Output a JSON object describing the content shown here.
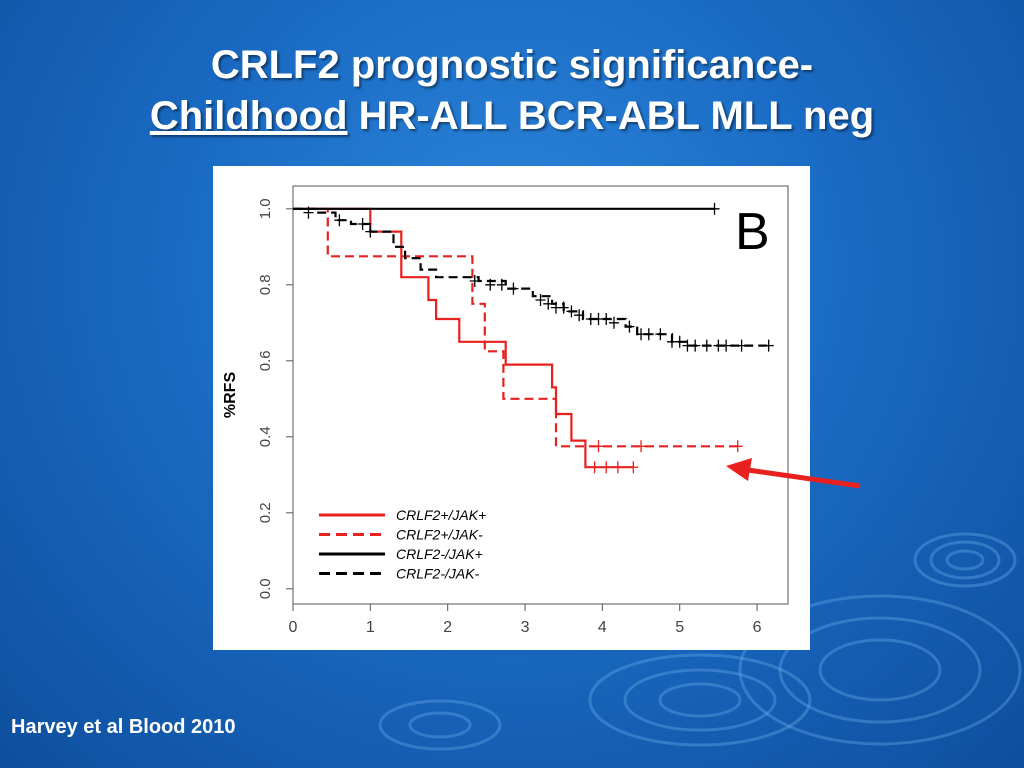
{
  "slide": {
    "title_line1": "CRLF2 prognostic significance-",
    "title_line2_underlined": "Childhood",
    "title_line2_rest": " HR-ALL BCR-ABL MLL neg",
    "citation": "Harvey et al Blood 2010",
    "background_color": "#1a6bc4",
    "annotation_arrow": {
      "color": "#e8201e",
      "points_to": "CRLF2+/JAK- curve plateau"
    }
  },
  "chart_data": {
    "type": "line",
    "subtype": "kaplan-meier",
    "panel_label": "B",
    "ylabel": "%RFS",
    "xlabel": "",
    "xlim": [
      0,
      6.4
    ],
    "ylim": [
      -0.04,
      1.06
    ],
    "x_ticks": [
      "0",
      "1",
      "2",
      "3",
      "4",
      "5",
      "6"
    ],
    "y_ticks": [
      "0.0",
      "0.2",
      "0.4",
      "0.6",
      "0.8",
      "1.0"
    ],
    "grid": false,
    "legend_position": "bottom-left",
    "series": [
      {
        "name": "CRLF2+/JAK+",
        "color": "#e8201e",
        "dash": "solid",
        "steps": [
          [
            0,
            1.0
          ],
          [
            1.0,
            0.94
          ],
          [
            1.4,
            0.82
          ],
          [
            1.75,
            0.76
          ],
          [
            1.85,
            0.71
          ],
          [
            2.15,
            0.65
          ],
          [
            2.75,
            0.59
          ],
          [
            3.35,
            0.53
          ],
          [
            3.4,
            0.46
          ],
          [
            3.6,
            0.39
          ],
          [
            3.78,
            0.32
          ],
          [
            4.4,
            0.32
          ]
        ],
        "censored": [
          [
            3.9,
            0.32
          ],
          [
            4.05,
            0.32
          ],
          [
            4.2,
            0.32
          ],
          [
            4.4,
            0.32
          ]
        ]
      },
      {
        "name": "CRLF2+/JAK-",
        "color": "#e8201e",
        "dash": "dashed",
        "steps": [
          [
            0.2,
            1.0
          ],
          [
            0.45,
            0.875
          ],
          [
            2.32,
            0.75
          ],
          [
            2.48,
            0.625
          ],
          [
            2.72,
            0.5
          ],
          [
            3.4,
            0.375
          ],
          [
            5.8,
            0.375
          ]
        ],
        "censored": [
          [
            3.95,
            0.375
          ],
          [
            4.5,
            0.375
          ],
          [
            5.75,
            0.375
          ]
        ]
      },
      {
        "name": "CRLF2-/JAK+",
        "color": "#000000",
        "dash": "solid",
        "steps": [
          [
            0,
            1.0
          ],
          [
            5.45,
            1.0
          ]
        ],
        "censored": [
          [
            5.45,
            1.0
          ]
        ]
      },
      {
        "name": "CRLF2-/JAK-",
        "color": "#000000",
        "dash": "dashed",
        "steps": [
          [
            0,
            1.0
          ],
          [
            0.3,
            0.99
          ],
          [
            0.55,
            0.97
          ],
          [
            0.75,
            0.96
          ],
          [
            1.0,
            0.94
          ],
          [
            1.3,
            0.9
          ],
          [
            1.45,
            0.87
          ],
          [
            1.65,
            0.84
          ],
          [
            1.85,
            0.82
          ],
          [
            2.4,
            0.81
          ],
          [
            2.75,
            0.79
          ],
          [
            3.1,
            0.77
          ],
          [
            3.35,
            0.75
          ],
          [
            3.5,
            0.73
          ],
          [
            3.75,
            0.71
          ],
          [
            4.3,
            0.69
          ],
          [
            4.45,
            0.67
          ],
          [
            4.9,
            0.65
          ],
          [
            5.1,
            0.64
          ],
          [
            6.2,
            0.64
          ]
        ],
        "censored": [
          [
            0.2,
            0.99
          ],
          [
            0.6,
            0.97
          ],
          [
            0.9,
            0.96
          ],
          [
            1.0,
            0.94
          ],
          [
            2.35,
            0.81
          ],
          [
            2.55,
            0.8
          ],
          [
            2.7,
            0.8
          ],
          [
            2.85,
            0.79
          ],
          [
            3.2,
            0.76
          ],
          [
            3.3,
            0.75
          ],
          [
            3.4,
            0.74
          ],
          [
            3.5,
            0.74
          ],
          [
            3.6,
            0.73
          ],
          [
            3.7,
            0.72
          ],
          [
            3.85,
            0.71
          ],
          [
            3.95,
            0.71
          ],
          [
            4.05,
            0.71
          ],
          [
            4.15,
            0.7
          ],
          [
            4.35,
            0.69
          ],
          [
            4.5,
            0.67
          ],
          [
            4.6,
            0.67
          ],
          [
            4.75,
            0.67
          ],
          [
            4.9,
            0.65
          ],
          [
            5.0,
            0.65
          ],
          [
            5.1,
            0.64
          ],
          [
            5.2,
            0.64
          ],
          [
            5.35,
            0.64
          ],
          [
            5.5,
            0.64
          ],
          [
            5.6,
            0.64
          ],
          [
            5.8,
            0.64
          ],
          [
            6.15,
            0.64
          ]
        ]
      }
    ]
  }
}
